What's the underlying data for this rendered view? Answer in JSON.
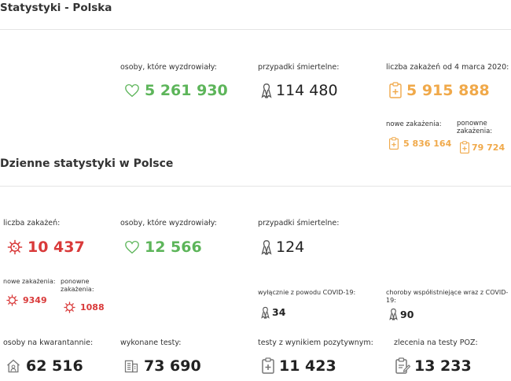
{
  "page": {
    "title": "Statystyki - Polska"
  },
  "colors": {
    "green": "#5db55a",
    "red": "#d93a3a",
    "orange": "#f0a94a",
    "dark": "#222222",
    "label": "#333333"
  },
  "summary": {
    "recovered": {
      "label": "osoby, które wyzdrowiały:",
      "value": "5 261 930",
      "icon": "heart-icon"
    },
    "deaths": {
      "label": "przypadki śmiertelne:",
      "value": "114 480",
      "icon": "ribbon-icon"
    },
    "infections": {
      "label": "liczba zakażeń od 4 marca 2020:",
      "value": "5 915 888",
      "icon": "clipboard-plus-icon"
    },
    "new_infections": {
      "label": "nowe zakażenia:",
      "value": "5 836 164",
      "icon": "clipboard-plus-icon"
    },
    "re_infections": {
      "label": "ponowne zakażenia:",
      "value": "79 724",
      "icon": "clipboard-plus-icon"
    }
  },
  "daily": {
    "heading": "Dzienne statystyki w Polsce",
    "infections": {
      "label": "liczba zakażeń:",
      "value": "10 437",
      "icon": "virus-icon"
    },
    "new_infections": {
      "label": "nowe zakażenia:",
      "value": "9349",
      "icon": "virus-icon"
    },
    "re_infections": {
      "label": "ponowne zakażenia:",
      "value": "1088",
      "icon": "virus-icon"
    },
    "recovered": {
      "label": "osoby, które wyzdrowiały:",
      "value": "12 566",
      "icon": "heart-icon"
    },
    "deaths": {
      "label": "przypadki śmiertelne:",
      "value": "124",
      "icon": "ribbon-icon"
    },
    "deaths_covid_only": {
      "label": "wyłącznie z powodu COVID-19:",
      "value": "34",
      "icon": "ribbon-icon"
    },
    "deaths_comorbid": {
      "label": "choroby współistniejące wraz z COVID-19:",
      "value": "90",
      "icon": "ribbon-icon"
    },
    "quarantine": {
      "label": "osoby na kwarantannie:",
      "value": "62 516",
      "icon": "house-icon"
    },
    "tests": {
      "label": "wykonane testy:",
      "value": "73 690",
      "icon": "building-icon"
    },
    "positive_tests": {
      "label": "testy z wynikiem pozytywnym:",
      "value": "11 423",
      "icon": "test-plus-icon"
    },
    "poz_orders": {
      "label": "zlecenia na testy POZ:",
      "value": "13 233",
      "icon": "test-order-icon"
    }
  }
}
